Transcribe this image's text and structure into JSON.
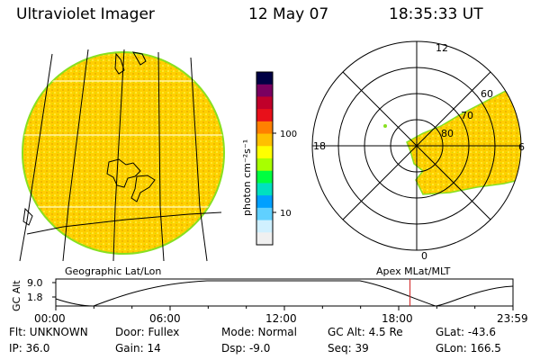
{
  "header": {
    "title": "Ultraviolet Imager",
    "date": "12 May 07",
    "time": "18:35:33 UT"
  },
  "colorbar": {
    "unit_label": "photon cm⁻²s⁻¹",
    "ticks": [
      "100",
      "10"
    ],
    "colors": [
      "#000044",
      "#7a0060",
      "#c0002a",
      "#e8101a",
      "#ff8000",
      "#ffc000",
      "#ffff00",
      "#a8ff00",
      "#00ff40",
      "#00e0c0",
      "#00a0ff",
      "#60d0ff",
      "#d0f0ff",
      "#f0f0f0"
    ]
  },
  "polar": {
    "clock_labels": [
      "12",
      "18",
      "6",
      "0"
    ],
    "lat_labels": [
      "60",
      "70",
      "80"
    ]
  },
  "timeline": {
    "left_label": "Geographic Lat/Lon",
    "right_label": "Apex  MLat/MLT",
    "axis_label": "GC Alt",
    "y_ticks": [
      "9.0",
      "1.8"
    ],
    "x_ticks": [
      "00:00",
      "06:00",
      "12:00",
      "18:00",
      "23:59"
    ],
    "marker_time": "18:35:33",
    "marker_color": "#d02020"
  },
  "info": {
    "flt": "Flt: UNKNOWN",
    "ip": "IP: 36.0",
    "door": "Door: Fullex",
    "gain": "Gain: 14",
    "mode": "Mode: Normal",
    "dsp": "Dsp:    -9.0",
    "gcalt": "GC Alt: 4.5 Re",
    "seq": "Seq: 39",
    "glat": "GLat: -43.6",
    "glon": "GLon: 166.5"
  },
  "palette": {
    "emission": "#ffd400",
    "emission_edge": "#88e020"
  }
}
